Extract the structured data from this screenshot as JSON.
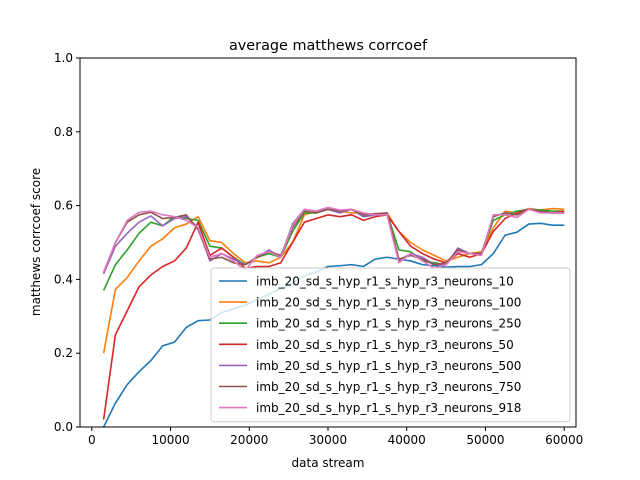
{
  "chart_data": {
    "type": "line",
    "title": "average matthews corrcoef",
    "xlabel": "data stream",
    "ylabel": "matthews corrcoef score",
    "xlim": [
      -1500,
      61500
    ],
    "ylim": [
      0,
      1
    ],
    "xticks": [
      0,
      10000,
      20000,
      30000,
      40000,
      50000,
      60000
    ],
    "yticks": [
      0.0,
      0.2,
      0.4,
      0.6,
      0.8,
      1.0
    ],
    "xtick_labels": [
      "0",
      "10000",
      "20000",
      "30000",
      "40000",
      "50000",
      "60000"
    ],
    "ytick_labels": [
      "0.0",
      "0.2",
      "0.4",
      "0.6",
      "0.8",
      "1.0"
    ],
    "grid": false,
    "legend_position": "lower-right",
    "x": [
      1500,
      3000,
      4500,
      6000,
      7500,
      9000,
      10500,
      12000,
      13500,
      15000,
      16500,
      18000,
      19500,
      21000,
      22500,
      24000,
      25500,
      27000,
      28500,
      30000,
      31500,
      33000,
      34500,
      36000,
      37500,
      39000,
      40500,
      42000,
      43500,
      45000,
      46500,
      48000,
      49500,
      51000,
      52500,
      54000,
      55500,
      57000,
      58500,
      60000
    ],
    "series": [
      {
        "name": "imb_20_sd_s_hyp_r1_s_hyp_r3_neurons_10",
        "color": "#1f77b4",
        "values": [
          0.0,
          0.065,
          0.115,
          0.15,
          0.18,
          0.22,
          0.23,
          0.27,
          0.288,
          0.29,
          0.31,
          0.32,
          0.33,
          0.345,
          0.36,
          0.375,
          0.39,
          0.41,
          0.42,
          0.435,
          0.437,
          0.44,
          0.435,
          0.455,
          0.46,
          0.455,
          0.45,
          0.44,
          0.437,
          0.433,
          0.435,
          0.435,
          0.44,
          0.47,
          0.52,
          0.528,
          0.55,
          0.552,
          0.547,
          0.547
        ]
      },
      {
        "name": "imb_20_sd_s_hyp_r1_s_hyp_r3_neurons_100",
        "color": "#ff7f0e",
        "values": [
          0.2,
          0.373,
          0.405,
          0.45,
          0.49,
          0.51,
          0.54,
          0.55,
          0.57,
          0.505,
          0.5,
          0.47,
          0.445,
          0.45,
          0.445,
          0.46,
          0.5,
          0.575,
          0.585,
          0.59,
          0.585,
          0.58,
          0.58,
          0.575,
          0.58,
          0.53,
          0.5,
          0.48,
          0.465,
          0.45,
          0.46,
          0.47,
          0.475,
          0.54,
          0.585,
          0.58,
          0.592,
          0.588,
          0.592,
          0.59
        ]
      },
      {
        "name": "imb_20_sd_s_hyp_r1_s_hyp_r3_neurons_250",
        "color": "#2ca02c",
        "values": [
          0.37,
          0.44,
          0.48,
          0.525,
          0.555,
          0.545,
          0.57,
          0.565,
          0.56,
          0.49,
          0.485,
          0.46,
          0.44,
          0.46,
          0.47,
          0.46,
          0.53,
          0.58,
          0.58,
          0.59,
          0.585,
          0.59,
          0.57,
          0.575,
          0.58,
          0.48,
          0.475,
          0.45,
          0.445,
          0.44,
          0.48,
          0.47,
          0.47,
          0.56,
          0.575,
          0.585,
          0.59,
          0.588,
          0.585,
          0.585
        ]
      },
      {
        "name": "imb_20_sd_s_hyp_r1_s_hyp_r3_neurons_50",
        "color": "#d62728",
        "values": [
          0.02,
          0.25,
          0.315,
          0.38,
          0.412,
          0.435,
          0.45,
          0.485,
          0.555,
          0.465,
          0.485,
          0.46,
          0.43,
          0.435,
          0.435,
          0.445,
          0.5,
          0.555,
          0.565,
          0.575,
          0.57,
          0.575,
          0.56,
          0.57,
          0.575,
          0.53,
          0.49,
          0.47,
          0.455,
          0.445,
          0.47,
          0.46,
          0.47,
          0.53,
          0.565,
          0.58,
          0.59,
          0.585,
          0.58,
          0.585
        ]
      },
      {
        "name": "imb_20_sd_s_hyp_r1_s_hyp_r3_neurons_500",
        "color": "#9467bd",
        "values": [
          0.415,
          0.49,
          0.525,
          0.555,
          0.572,
          0.545,
          0.565,
          0.57,
          0.54,
          0.45,
          0.47,
          0.455,
          0.44,
          0.46,
          0.48,
          0.46,
          0.55,
          0.59,
          0.585,
          0.59,
          0.58,
          0.59,
          0.57,
          0.575,
          0.58,
          0.45,
          0.47,
          0.46,
          0.44,
          0.44,
          0.485,
          0.47,
          0.47,
          0.57,
          0.58,
          0.575,
          0.59,
          0.585,
          0.58,
          0.58
        ]
      },
      {
        "name": "imb_20_sd_s_hyp_r1_s_hyp_r3_neurons_750",
        "color": "#8c564b",
        "values": [
          0.418,
          0.5,
          0.555,
          0.575,
          0.582,
          0.565,
          0.568,
          0.575,
          0.535,
          0.455,
          0.46,
          0.445,
          0.44,
          0.46,
          0.475,
          0.465,
          0.54,
          0.585,
          0.58,
          0.59,
          0.585,
          0.59,
          0.575,
          0.578,
          0.58,
          0.455,
          0.465,
          0.455,
          0.44,
          0.445,
          0.48,
          0.47,
          0.47,
          0.57,
          0.58,
          0.575,
          0.59,
          0.585,
          0.58,
          0.58
        ]
      },
      {
        "name": "imb_20_sd_s_hyp_r1_s_hyp_r3_neurons_918",
        "color": "#e377c2",
        "values": [
          0.42,
          0.5,
          0.56,
          0.582,
          0.585,
          0.575,
          0.57,
          0.56,
          0.54,
          0.46,
          0.47,
          0.45,
          0.425,
          0.465,
          0.475,
          0.46,
          0.545,
          0.59,
          0.585,
          0.595,
          0.588,
          0.59,
          0.58,
          0.575,
          0.575,
          0.445,
          0.47,
          0.45,
          0.43,
          0.44,
          0.475,
          0.47,
          0.465,
          0.575,
          0.575,
          0.568,
          0.59,
          0.58,
          0.58,
          0.58
        ]
      }
    ]
  }
}
